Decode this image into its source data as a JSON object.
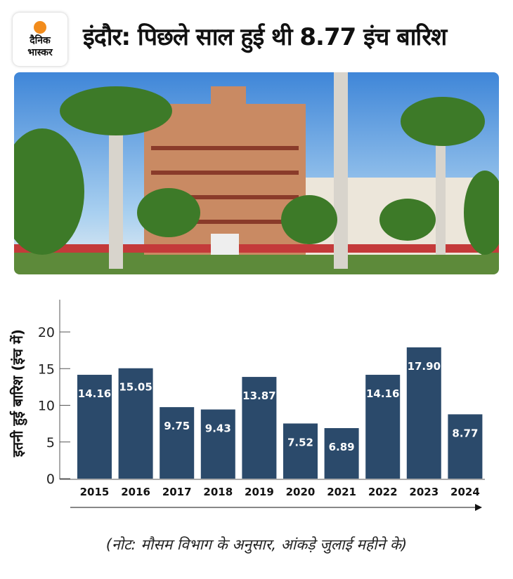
{
  "logo": {
    "line1": "दैनिक",
    "line2": "भास्कर"
  },
  "title": "इंदौर: पिछले साल हुई थी 8.77 इंच बारिश",
  "note": "(नोट: मौसम विभाग के अनुसार, आंकड़े जुलाई महीने के)",
  "chart_data": {
    "type": "bar",
    "categories": [
      "2015",
      "2016",
      "2017",
      "2018",
      "2019",
      "2020",
      "2021",
      "2022",
      "2023",
      "2024"
    ],
    "values": [
      14.16,
      15.05,
      9.75,
      9.43,
      13.87,
      7.52,
      6.89,
      14.16,
      17.9,
      8.77
    ],
    "value_labels": [
      "14.16",
      "15.05",
      "9.75",
      "9.43",
      "13.87",
      "7.52",
      "6.89",
      "14.16",
      "17.90",
      "8.77"
    ],
    "ylabel": "इतनी हुई बारिश (इंच में)",
    "xlabel": "",
    "yticks": [
      "0",
      "5",
      "10",
      "15",
      "20"
    ],
    "ylim": [
      0,
      24
    ],
    "bar_color": "#2b4a6b"
  }
}
